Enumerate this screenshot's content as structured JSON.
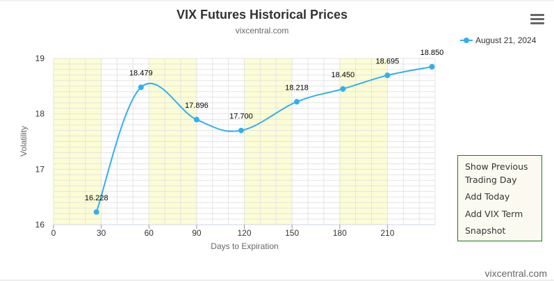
{
  "chart_data": {
    "type": "line",
    "title": "VIX Futures Historical Prices",
    "subtitle": "vixcentral.com",
    "xlabel": "Days to Expiration",
    "ylabel": "Volatility",
    "xlim": [
      0,
      240
    ],
    "ylim": [
      16,
      19
    ],
    "x_ticks": [
      0,
      30,
      60,
      90,
      120,
      150,
      180,
      210
    ],
    "y_ticks": [
      16,
      17,
      18,
      19
    ],
    "grid": true,
    "legend_position": "top-right",
    "shaded_bands": [
      [
        0,
        30
      ],
      [
        60,
        90
      ],
      [
        120,
        150
      ],
      [
        180,
        210
      ]
    ],
    "series": [
      {
        "name": "August 21, 2024",
        "color": "#2fb0ef",
        "x": [
          27,
          55,
          90,
          118,
          153,
          182,
          210,
          238
        ],
        "values": [
          16.228,
          18.479,
          17.896,
          17.7,
          18.218,
          18.45,
          18.695,
          18.85
        ],
        "labels": [
          "16.228",
          "18.479",
          "17.896",
          "17.700",
          "18.218",
          "18.450",
          "18.695",
          "18.850"
        ]
      }
    ]
  },
  "menu": {
    "icon": "hamburger-menu-icon",
    "items": [
      "Show Previous",
      "Trading Day",
      "Add Today",
      "Add VIX Term",
      "Snapshot"
    ]
  },
  "credit": "vixcentral.com",
  "colors": {
    "band": "#fdfdd5",
    "grid": "#e3e3e3",
    "line": "#2fb0ef",
    "menu_border": "#1a7a1a"
  }
}
